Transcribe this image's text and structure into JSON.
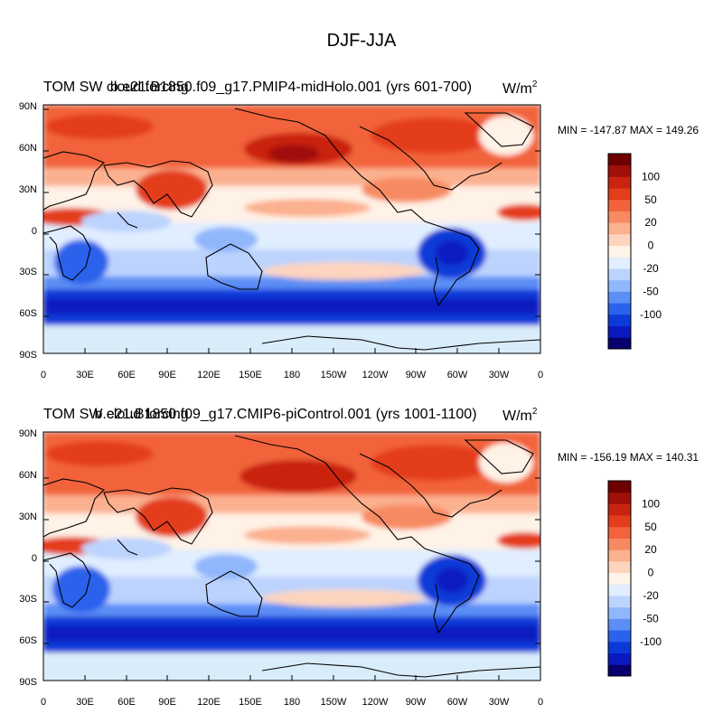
{
  "figure": {
    "title": "DJF-JJA",
    "colors": {
      "ocean_base": "#d9ecfa",
      "land_outline": "#000000"
    }
  },
  "colorbar": {
    "colors": [
      "#08006e",
      "#0a1ac0",
      "#0c3ad8",
      "#2a62ec",
      "#5c8ef5",
      "#90b6fb",
      "#bcd3fd",
      "#e0eeff",
      "#fff2e6",
      "#fdd4bd",
      "#fbb08f",
      "#f78a62",
      "#f2633b",
      "#e43d1c",
      "#c92410",
      "#a01008",
      "#6e0000"
    ],
    "labels": [
      "100",
      "50",
      "20",
      "0",
      "-20",
      "-50",
      "-100"
    ]
  },
  "panels": [
    {
      "title_left": "TOM SW cloud forcing",
      "title_center": "b.e21.B1850.f09_g17.PMIP4-midHolo.001 (yrs 601-700)",
      "units": "W/m",
      "units_sup": "2",
      "min_max": "MIN = -147.87 MAX = 149.26"
    },
    {
      "title_left": "TOM SW cloud forcing",
      "title_center": "b.e21.B1850.f09_g17.CMIP6-piControl.001 (yrs 1001-1100)",
      "units": "W/m",
      "units_sup": "2",
      "min_max": "MIN = -156.19 MAX = 140.31"
    }
  ],
  "axes": {
    "lat_labels": [
      "90N",
      "60N",
      "30N",
      "0",
      "30S",
      "60S",
      "90S"
    ],
    "lon_labels": [
      "0",
      "30E",
      "60E",
      "90E",
      "120E",
      "150E",
      "180",
      "150W",
      "120W",
      "90W",
      "60W",
      "30W",
      "0"
    ]
  }
}
